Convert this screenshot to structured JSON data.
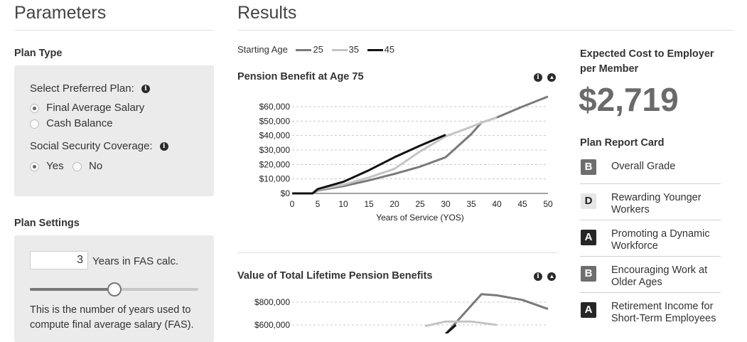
{
  "parameters": {
    "title": "Parameters",
    "plan_type": {
      "title": "Plan Type",
      "preferred_plan_label": "Select Preferred Plan:",
      "plan_options": [
        "Final Average Salary",
        "Cash Balance"
      ],
      "selected_plan": "Final Average Salary",
      "ss_label": "Social Security Coverage:",
      "ss_options": [
        "Yes",
        "No"
      ],
      "selected_ss": "Yes"
    },
    "plan_settings": {
      "title": "Plan Settings",
      "fas_years_value": "3",
      "fas_years_label": "Years in FAS calc.",
      "slider_level_fraction": 0.5,
      "description": "This is the number of years used to compute final average salary (FAS)."
    }
  },
  "results": {
    "title": "Results",
    "legend": {
      "label": "Starting Age",
      "items": [
        {
          "name": "25",
          "color": "#7a7a7a"
        },
        {
          "name": "35",
          "color": "#c4c4c4"
        },
        {
          "name": "45",
          "color": "#111111"
        }
      ]
    },
    "chart1_title": "Pension Benefit at Age 75",
    "chart2_title": "Value of Total Lifetime Pension Benefits"
  },
  "chart_data": [
    {
      "type": "line",
      "title": "Pension Benefit at Age 75",
      "xlabel": "Years of Service (YOS)",
      "ylabel": "",
      "xlim": [
        0,
        50
      ],
      "ylim": [
        0,
        60000
      ],
      "x_ticks": [
        "0",
        "5",
        "10",
        "15",
        "20",
        "25",
        "30",
        "35",
        "40",
        "45",
        "50"
      ],
      "y_ticks": [
        "$0",
        "$10,000",
        "$20,000",
        "$30,000",
        "$40,000",
        "$50,000",
        "$60,000"
      ],
      "y_tick_values": [
        0,
        10000,
        20000,
        30000,
        40000,
        50000,
        60000
      ],
      "grid": true,
      "series": [
        {
          "name": "25",
          "color": "#7a7a7a",
          "x": [
            0,
            4,
            5,
            10,
            15,
            20,
            25,
            30,
            35,
            37,
            40,
            45,
            50
          ],
          "y": [
            0,
            0,
            2000,
            5000,
            9000,
            13500,
            18500,
            25000,
            41000,
            49000,
            52500,
            60000,
            67000
          ]
        },
        {
          "name": "35",
          "color": "#c4c4c4",
          "x": [
            0,
            4,
            5,
            10,
            15,
            20,
            25,
            30,
            35,
            37,
            40
          ],
          "y": [
            0,
            0,
            2500,
            6000,
            11000,
            17000,
            29000,
            39500,
            46000,
            49000,
            52500
          ]
        },
        {
          "name": "45",
          "color": "#111111",
          "x": [
            0,
            4,
            5,
            10,
            15,
            20,
            25,
            30
          ],
          "y": [
            0,
            0,
            3000,
            8000,
            16000,
            25000,
            33000,
            40500
          ]
        }
      ]
    },
    {
      "type": "line",
      "title": "Value of Total Lifetime Pension Benefits",
      "xlim": [
        0,
        50
      ],
      "ylim": [
        0,
        900000
      ],
      "y_ticks": [
        "$600,000",
        "$800,000"
      ],
      "y_tick_values": [
        600000,
        800000
      ],
      "grid": true,
      "series": [
        {
          "name": "25",
          "color": "#7a7a7a",
          "x": [
            30,
            37,
            40,
            45,
            50
          ],
          "y": [
            520000,
            870000,
            860000,
            820000,
            740000
          ]
        },
        {
          "name": "35",
          "color": "#c4c4c4",
          "x": [
            26,
            30,
            35,
            40
          ],
          "y": [
            590000,
            630000,
            630000,
            600000
          ]
        },
        {
          "name": "45",
          "color": "#111111",
          "x": [
            30,
            32
          ],
          "y": [
            520000,
            600000
          ]
        }
      ]
    }
  ],
  "cost": {
    "label": "Expected Cost to Employer per Member",
    "value": "$2,719"
  },
  "report_card": {
    "title": "Plan Report Card",
    "items": [
      {
        "grade": "B",
        "label": "Overall Grade",
        "color": "#6e6e6e"
      },
      {
        "grade": "D",
        "label": "Rewarding Younger Workers",
        "color": "#e6e6e6"
      },
      {
        "grade": "A",
        "label": "Promoting a Dynamic Workforce",
        "color": "#262626"
      },
      {
        "grade": "B",
        "label": "Encouraging Work at Older Ages",
        "color": "#6e6e6e"
      },
      {
        "grade": "A",
        "label": "Retirement Income for Short-Term Employees",
        "color": "#262626"
      }
    ]
  }
}
